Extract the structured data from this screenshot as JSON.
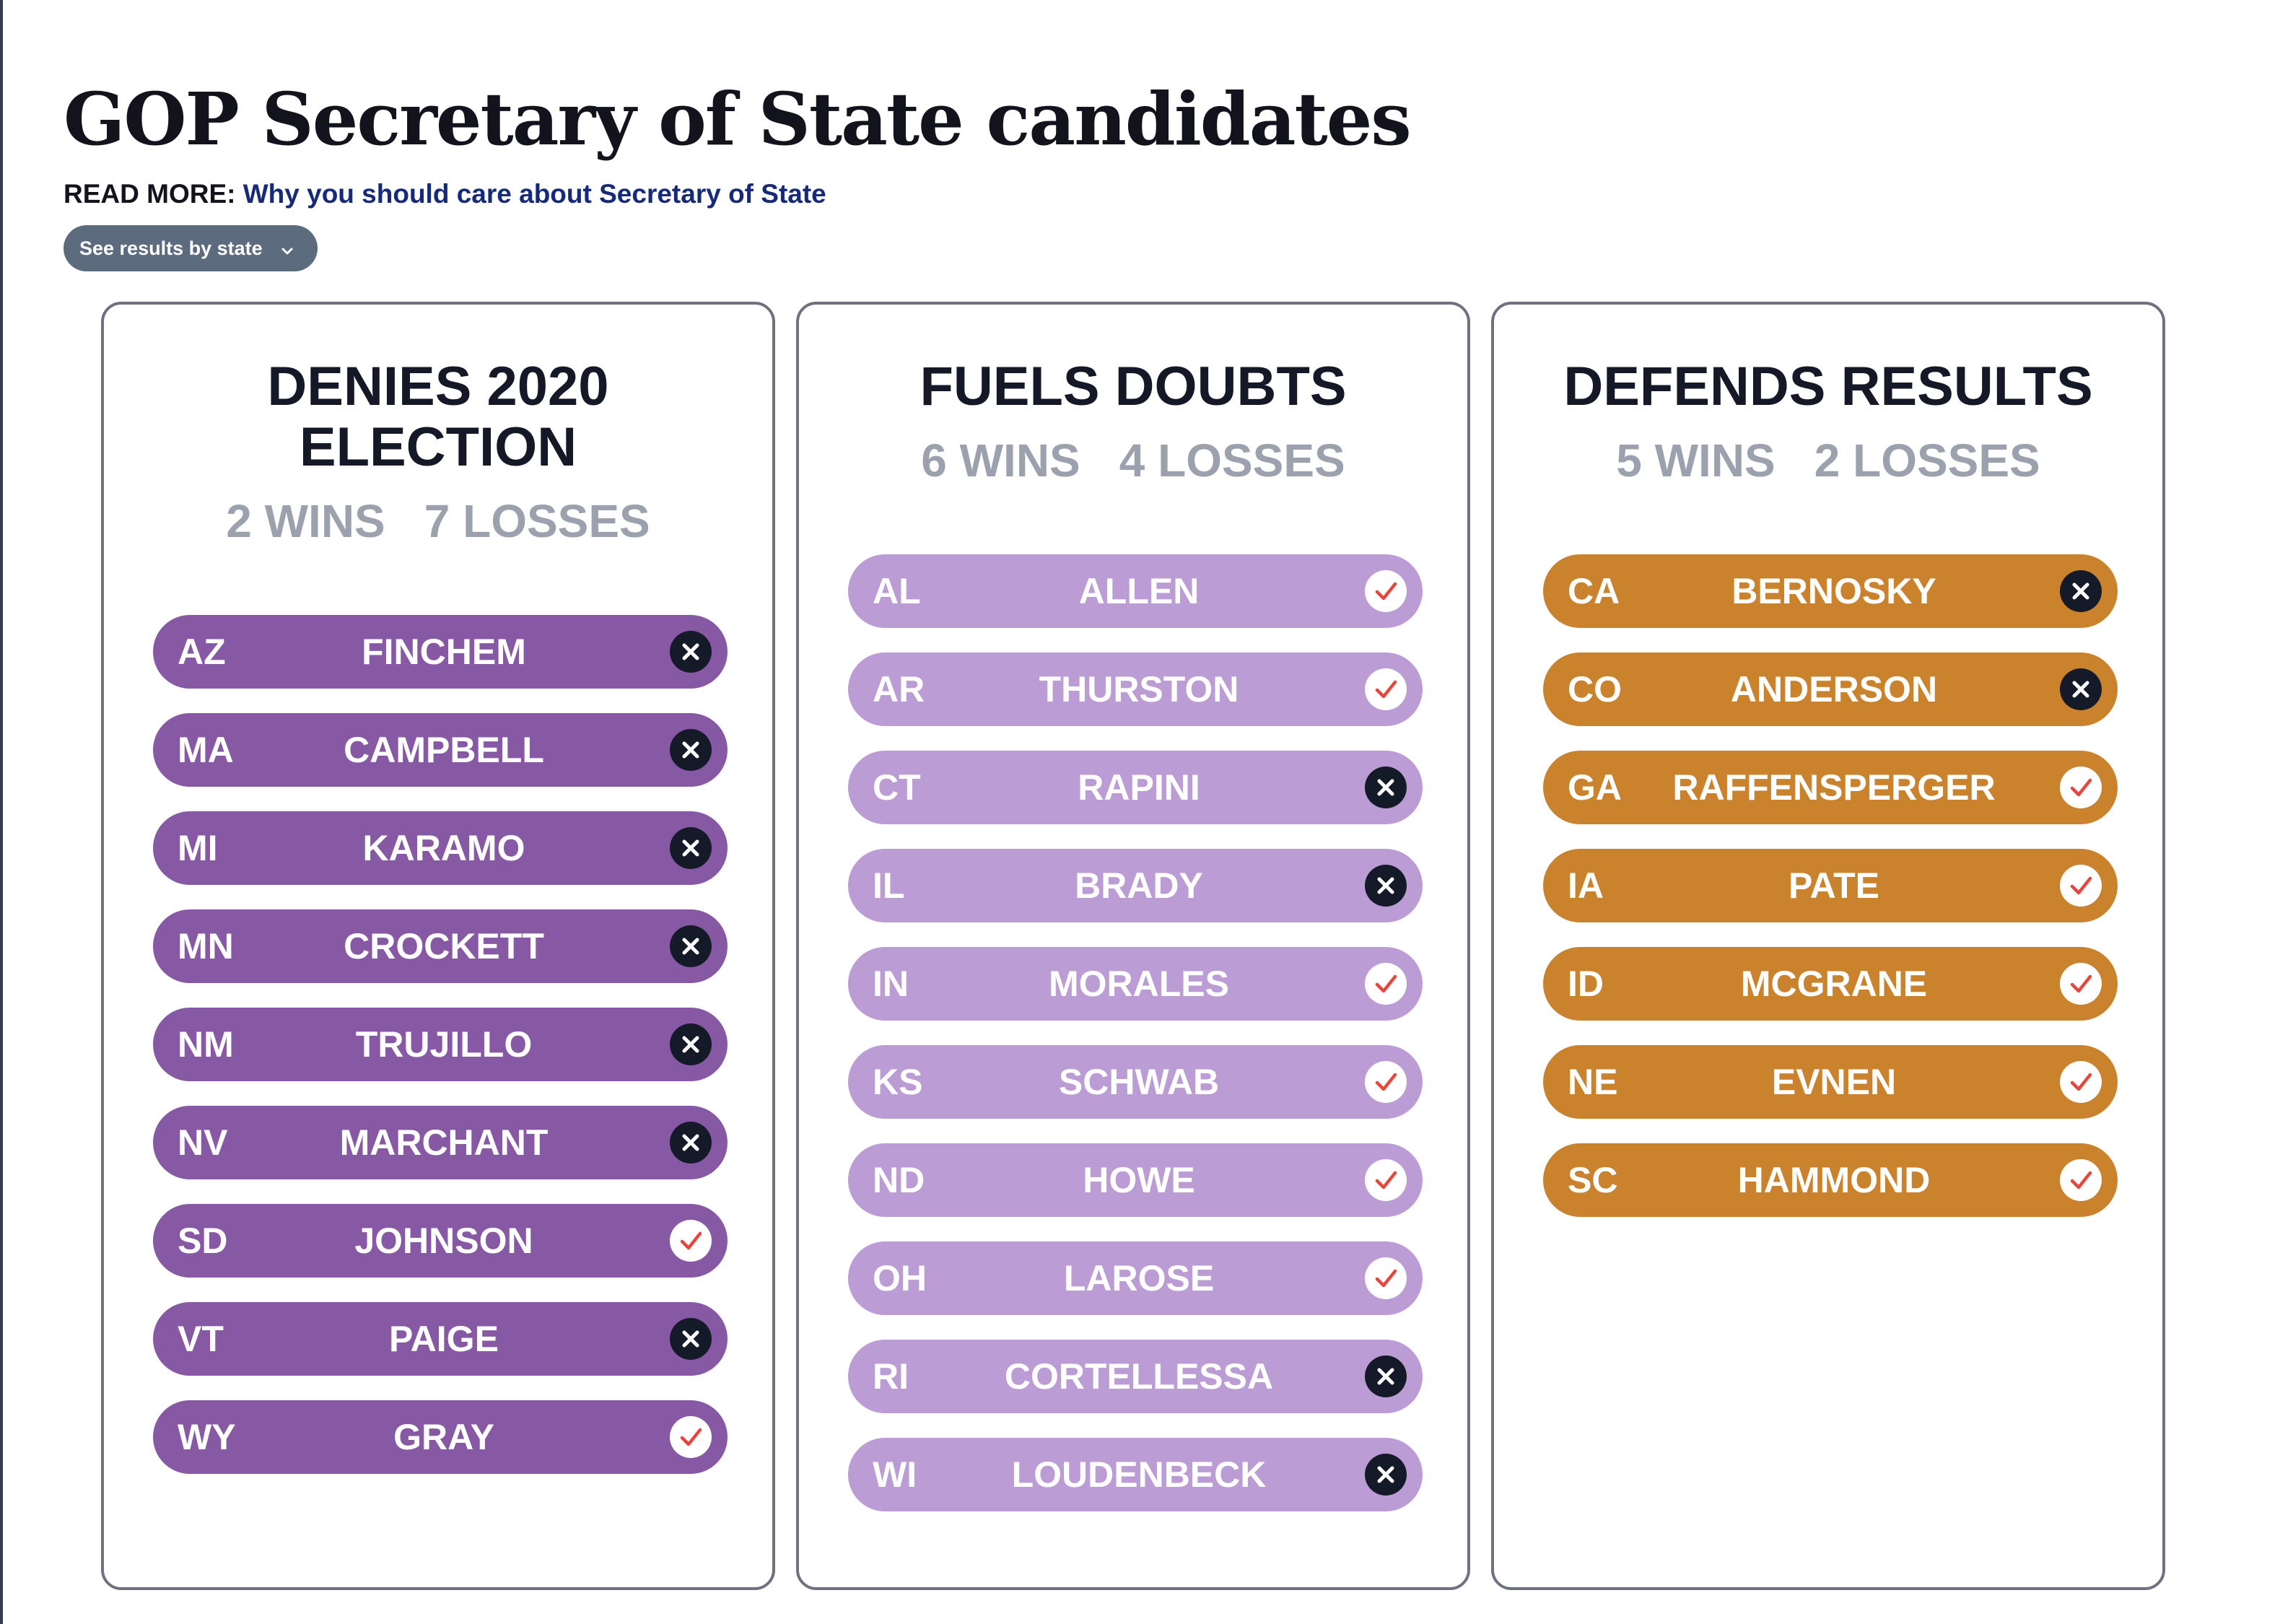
{
  "page": {
    "title": "GOP Secretary of State candidates",
    "read_more_label": "READ MORE:",
    "read_more_link": "Why you should care about Secretary of State",
    "state_select_label": "See results by state"
  },
  "colors": {
    "denies": "#8758a4",
    "doubts": "#bb9cd4",
    "defends": "#cb822c",
    "loss_mark": "#151a28",
    "win_check": "#e8453c"
  },
  "panels": [
    {
      "title_line1": "DENIES 2020",
      "title_line2": "ELECTION",
      "wins": "2 WINS",
      "losses": "7 LOSSES",
      "candidates": [
        {
          "state": "AZ",
          "name": "FINCHEM",
          "result": "loss"
        },
        {
          "state": "MA",
          "name": "CAMPBELL",
          "result": "loss"
        },
        {
          "state": "MI",
          "name": "KARAMO",
          "result": "loss"
        },
        {
          "state": "MN",
          "name": "CROCKETT",
          "result": "loss"
        },
        {
          "state": "NM",
          "name": "TRUJILLO",
          "result": "loss"
        },
        {
          "state": "NV",
          "name": "MARCHANT",
          "result": "loss"
        },
        {
          "state": "SD",
          "name": "JOHNSON",
          "result": "win"
        },
        {
          "state": "VT",
          "name": "PAIGE",
          "result": "loss"
        },
        {
          "state": "WY",
          "name": "GRAY",
          "result": "win"
        }
      ]
    },
    {
      "title_line1": "FUELS DOUBTS",
      "title_line2": "",
      "wins": "6 WINS",
      "losses": "4 LOSSES",
      "candidates": [
        {
          "state": "AL",
          "name": "ALLEN",
          "result": "win"
        },
        {
          "state": "AR",
          "name": "THURSTON",
          "result": "win"
        },
        {
          "state": "CT",
          "name": "RAPINI",
          "result": "loss"
        },
        {
          "state": "IL",
          "name": "BRADY",
          "result": "loss"
        },
        {
          "state": "IN",
          "name": "MORALES",
          "result": "win"
        },
        {
          "state": "KS",
          "name": "SCHWAB",
          "result": "win"
        },
        {
          "state": "ND",
          "name": "HOWE",
          "result": "win"
        },
        {
          "state": "OH",
          "name": "LAROSE",
          "result": "win"
        },
        {
          "state": "RI",
          "name": "CORTELLESSA",
          "result": "loss"
        },
        {
          "state": "WI",
          "name": "LOUDENBECK",
          "result": "loss"
        }
      ]
    },
    {
      "title_line1": "DEFENDS RESULTS",
      "title_line2": "",
      "wins": "5 WINS",
      "losses": "2 LOSSES",
      "candidates": [
        {
          "state": "CA",
          "name": "BERNOSKY",
          "result": "loss"
        },
        {
          "state": "CO",
          "name": "ANDERSON",
          "result": "loss"
        },
        {
          "state": "GA",
          "name": "RAFFENSPERGER",
          "result": "win"
        },
        {
          "state": "IA",
          "name": "PATE",
          "result": "win"
        },
        {
          "state": "ID",
          "name": "MCGRANE",
          "result": "win"
        },
        {
          "state": "NE",
          "name": "EVNEN",
          "result": "win"
        },
        {
          "state": "SC",
          "name": "HAMMOND",
          "result": "win"
        }
      ]
    }
  ]
}
